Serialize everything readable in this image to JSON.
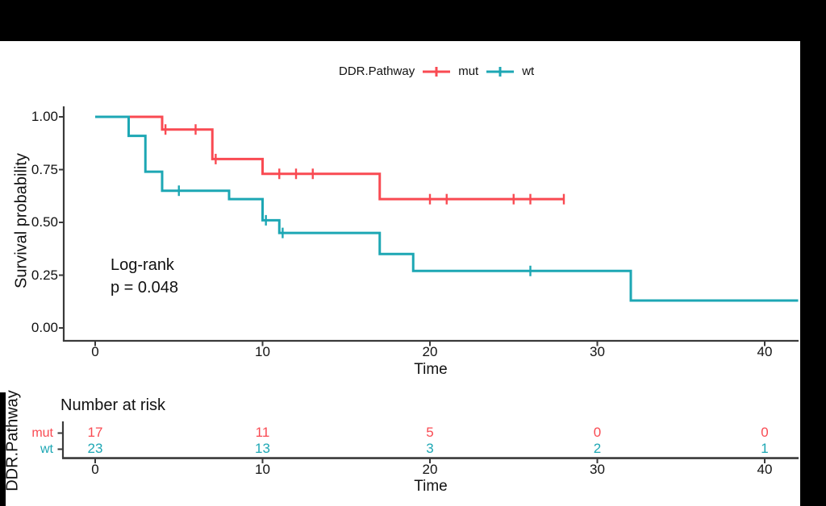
{
  "colors": {
    "mut": "#f94a52",
    "wt": "#1da7b4",
    "axis": "#3a3a3a",
    "text": "#111111",
    "background": "#ffffff",
    "frame": "#000000"
  },
  "legend": {
    "title": "DDR.Pathway",
    "items": [
      {
        "label": "mut",
        "color_key": "mut"
      },
      {
        "label": "wt",
        "color_key": "wt"
      }
    ]
  },
  "chart_data": {
    "type": "line",
    "subtype": "kaplan-meier-step",
    "title": "",
    "xlabel": "Time",
    "ylabel": "Survival probability",
    "xlim": [
      0,
      42
    ],
    "ylim": [
      0,
      1
    ],
    "xticks": [
      0,
      10,
      20,
      30,
      40
    ],
    "yticks": [
      0,
      0.25,
      0.5,
      0.75,
      1
    ],
    "ytick_labels": [
      "0.00",
      "0.25",
      "0.50",
      "0.75",
      "1.00"
    ],
    "grid": "off",
    "legend_position": "top",
    "annotation": [
      "Log-rank",
      "p = 0.048"
    ],
    "series": [
      {
        "name": "mut",
        "steps": [
          [
            0,
            1.0
          ],
          [
            4,
            1.0
          ],
          [
            4,
            0.94
          ],
          [
            7,
            0.94
          ],
          [
            7,
            0.8
          ],
          [
            10,
            0.8
          ],
          [
            10,
            0.73
          ],
          [
            17,
            0.73
          ],
          [
            17,
            0.61
          ],
          [
            28,
            0.61
          ]
        ],
        "censors": [
          [
            4.2,
            0.94
          ],
          [
            6,
            0.94
          ],
          [
            7.2,
            0.8
          ],
          [
            11,
            0.73
          ],
          [
            12,
            0.73
          ],
          [
            13,
            0.73
          ],
          [
            20,
            0.61
          ],
          [
            21,
            0.61
          ],
          [
            25,
            0.61
          ],
          [
            26,
            0.61
          ],
          [
            28,
            0.61
          ]
        ]
      },
      {
        "name": "wt",
        "steps": [
          [
            0,
            1.0
          ],
          [
            2,
            1.0
          ],
          [
            2,
            0.91
          ],
          [
            3,
            0.91
          ],
          [
            3,
            0.74
          ],
          [
            4,
            0.74
          ],
          [
            4,
            0.65
          ],
          [
            8,
            0.65
          ],
          [
            8,
            0.61
          ],
          [
            10,
            0.61
          ],
          [
            10,
            0.51
          ],
          [
            11,
            0.51
          ],
          [
            11,
            0.45
          ],
          [
            17,
            0.45
          ],
          [
            17,
            0.35
          ],
          [
            19,
            0.35
          ],
          [
            19,
            0.27
          ],
          [
            32,
            0.27
          ],
          [
            32,
            0.13
          ],
          [
            42,
            0.13
          ]
        ],
        "censors": [
          [
            5,
            0.65
          ],
          [
            10.2,
            0.51
          ],
          [
            11.2,
            0.45
          ],
          [
            26,
            0.27
          ]
        ]
      }
    ]
  },
  "risk_table": {
    "title": "Number at risk",
    "axis_label": "DDR.Pathway",
    "xlabel": "Time",
    "times": [
      0,
      10,
      20,
      30,
      40
    ],
    "rows": [
      {
        "label": "mut",
        "color_key": "mut",
        "counts": [
          17,
          11,
          5,
          0,
          0
        ]
      },
      {
        "label": "wt",
        "color_key": "wt",
        "counts": [
          23,
          13,
          3,
          2,
          1
        ]
      }
    ]
  }
}
